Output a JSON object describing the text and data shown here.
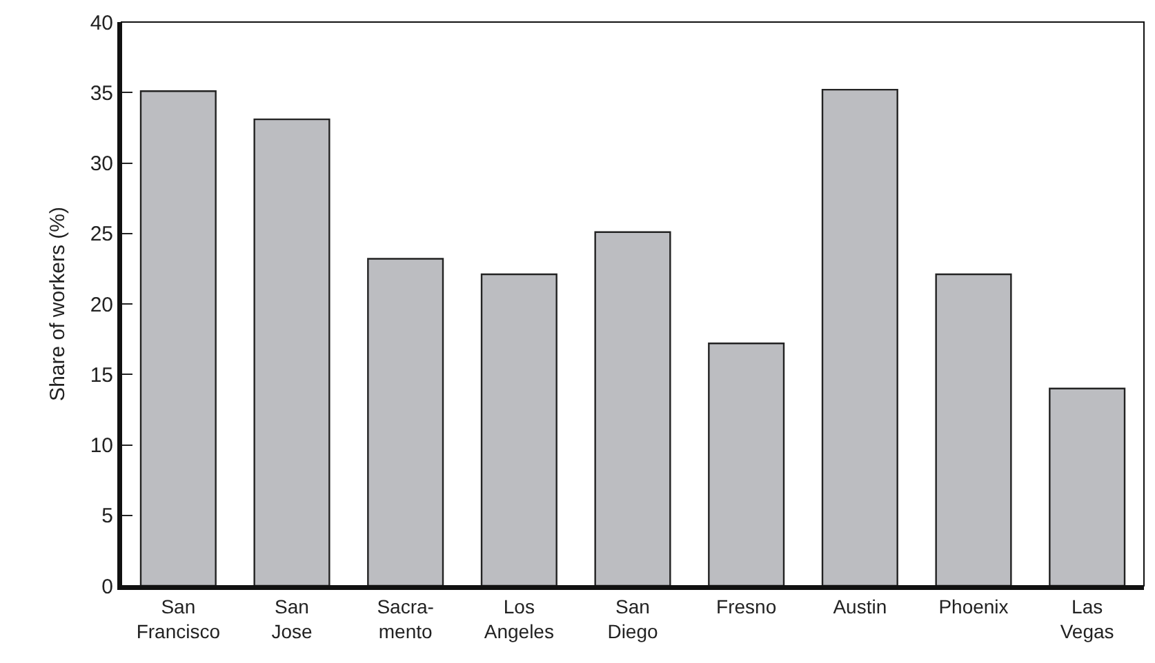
{
  "chart_data": {
    "type": "bar",
    "ylabel": "Share of workers (%)",
    "categories": [
      "San Francisco",
      "San Jose",
      "Sacra-mento",
      "Los Angeles",
      "San Diego",
      "Fresno",
      "Austin",
      "Phoenix",
      "Las Vegas"
    ],
    "values": [
      35.1,
      33.1,
      23.2,
      22.1,
      25.1,
      17.2,
      35.2,
      22.1,
      14.0
    ],
    "color": "#bcbdc1",
    "ylim": [
      0,
      40
    ],
    "yticks": [
      0,
      5,
      10,
      15,
      20,
      25,
      30,
      35,
      40
    ]
  }
}
